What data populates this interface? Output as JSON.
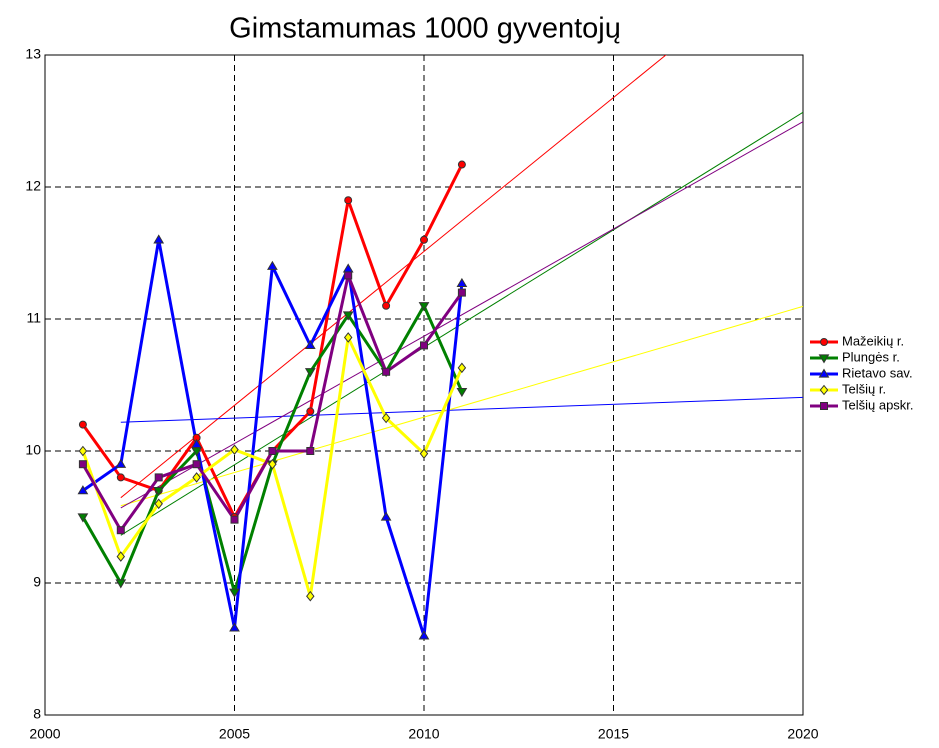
{
  "chart_data": {
    "type": "line",
    "title": "Gimstamumas 1000 gyventojų",
    "x": [
      2001,
      2002,
      2003,
      2004,
      2005,
      2006,
      2007,
      2008,
      2009,
      2010,
      2011
    ],
    "series": [
      {
        "name": "Mažeikių r.",
        "color": "#ff0000",
        "marker": "circle",
        "values": [
          10.2,
          9.8,
          9.7,
          10.1,
          9.5,
          10.0,
          10.3,
          11.9,
          11.1,
          11.6,
          12.17
        ]
      },
      {
        "name": "Plungės r.",
        "color": "#008000",
        "marker": "triangle-down",
        "values": [
          9.5,
          9.0,
          9.7,
          10.0,
          8.93,
          9.9,
          10.6,
          11.03,
          10.6,
          11.1,
          10.45
        ]
      },
      {
        "name": "Rietavo sav.",
        "color": "#0000ff",
        "marker": "triangle-up",
        "values": [
          9.7,
          9.9,
          11.6,
          10.05,
          8.66,
          11.4,
          10.8,
          11.38,
          9.5,
          8.6,
          11.27
        ]
      },
      {
        "name": "Telšių r.",
        "color": "#ffff00",
        "marker": "diamond",
        "values": [
          10.0,
          9.2,
          9.6,
          9.8,
          10.01,
          9.9,
          8.9,
          10.86,
          10.25,
          9.98,
          10.63
        ]
      },
      {
        "name": "Telšių apskr.",
        "color": "#800080",
        "marker": "square",
        "values": [
          9.9,
          9.4,
          9.8,
          9.9,
          9.48,
          10.0,
          10.0,
          11.33,
          10.6,
          10.8,
          11.2
        ]
      }
    ],
    "xlim": [
      2000,
      2020
    ],
    "xticks": [
      2000,
      2005,
      2010,
      2015,
      2020
    ],
    "ylim": [
      8,
      13
    ],
    "yticks": [
      8,
      9,
      10,
      11,
      12,
      13
    ],
    "grid": true,
    "trendline": true,
    "legend": "right"
  }
}
